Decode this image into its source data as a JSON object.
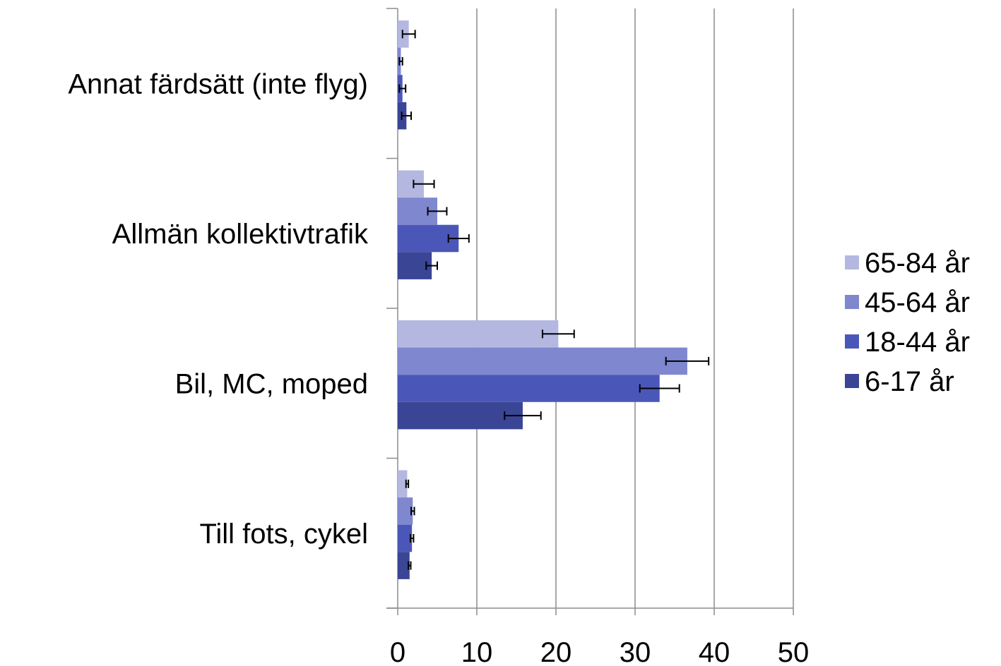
{
  "chart_data": {
    "type": "bar",
    "orientation": "horizontal",
    "categories": [
      "Annat färdsätt (inte flyg)",
      "Allmän kollektivtrafik",
      "Bil, MC, moped",
      "Till fots, cykel"
    ],
    "series": [
      {
        "name": "65-84 år",
        "color": "#b4b8e0",
        "values": [
          1.4,
          3.3,
          20.3,
          1.2
        ],
        "error": [
          0.8,
          1.3,
          2.0,
          0.15
        ]
      },
      {
        "name": "45-64 år",
        "color": "#7f87cf",
        "values": [
          0.4,
          5.0,
          36.6,
          1.9
        ],
        "error": [
          0.2,
          1.2,
          2.7,
          0.2
        ]
      },
      {
        "name": "18-44 år",
        "color": "#4b57b8",
        "values": [
          0.6,
          7.7,
          33.1,
          1.8
        ],
        "error": [
          0.4,
          1.3,
          2.5,
          0.2
        ]
      },
      {
        "name": "6-17 år",
        "color": "#3a4595",
        "values": [
          1.1,
          4.3,
          15.8,
          1.5
        ],
        "error": [
          0.6,
          0.7,
          2.3,
          0.15
        ]
      }
    ],
    "xlim": [
      0,
      50
    ],
    "xticks": [
      "0",
      "10",
      "20",
      "30",
      "40",
      "50"
    ],
    "grid": "vertical",
    "legend": "right",
    "title": "",
    "xlabel": "",
    "ylabel": ""
  }
}
